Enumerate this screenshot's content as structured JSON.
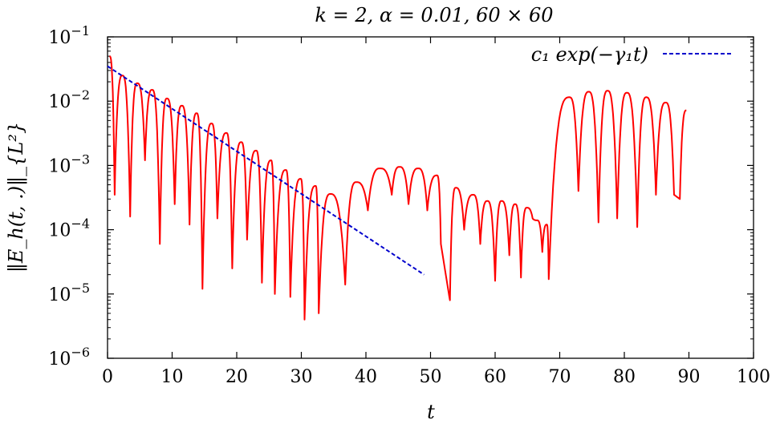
{
  "chart_data": {
    "type": "line",
    "title": "k = 2, α = 0.01, 60 × 60",
    "xlabel": "t",
    "ylabel": "‖E_h(t, .)‖_{L²}",
    "xlim": [
      0,
      100
    ],
    "ylim": [
      1e-06,
      0.1
    ],
    "yscale": "log",
    "x_ticks": [
      0,
      10,
      20,
      30,
      40,
      50,
      60,
      70,
      80,
      90,
      100
    ],
    "y_ticks": [
      {
        "value": 1e-06,
        "exp": "−6"
      },
      {
        "value": 1e-05,
        "exp": "−5"
      },
      {
        "value": 0.0001,
        "exp": "−4"
      },
      {
        "value": 0.001,
        "exp": "−3"
      },
      {
        "value": 0.01,
        "exp": "−2"
      },
      {
        "value": 0.1,
        "exp": "−1"
      }
    ],
    "tick_base": "10",
    "grid": false,
    "legend_position": "top-right",
    "series": [
      {
        "name": "",
        "color": "#ff0000",
        "style": "solid",
        "peaks": [
          [
            0.3,
            0.05
          ],
          [
            2.3,
            0.025
          ],
          [
            4.6,
            0.019
          ],
          [
            6.9,
            0.015
          ],
          [
            9.2,
            0.011
          ],
          [
            11.5,
            0.0085
          ],
          [
            13.8,
            0.0065
          ],
          [
            16.1,
            0.0045
          ],
          [
            18.4,
            0.0032
          ],
          [
            20.7,
            0.0023
          ],
          [
            23.0,
            0.0017
          ],
          [
            25.3,
            0.0012
          ],
          [
            27.6,
            0.00085
          ],
          [
            29.9,
            0.00062
          ],
          [
            32.2,
            0.00048
          ],
          [
            34.5,
            0.00036
          ],
          [
            38.5,
            0.00055
          ],
          [
            42.2,
            0.0009
          ],
          [
            45.2,
            0.00095
          ],
          [
            48.1,
            0.0009
          ],
          [
            51.0,
            0.0007
          ],
          [
            53.9,
            0.00045
          ],
          [
            56.6,
            0.00035
          ],
          [
            58.8,
            0.00028
          ],
          [
            61.0,
            0.00028
          ],
          [
            63.1,
            0.00025
          ],
          [
            64.9,
            0.00022
          ],
          [
            66.5,
            0.00014
          ],
          [
            68.0,
            0.00012
          ],
          [
            71.5,
            0.0115
          ],
          [
            74.5,
            0.014
          ],
          [
            77.4,
            0.0145
          ],
          [
            80.4,
            0.0135
          ],
          [
            83.4,
            0.0115
          ],
          [
            86.4,
            0.0095
          ],
          [
            89.6,
            0.0072
          ]
        ],
        "troughs": [
          [
            1.1,
            0.00035
          ],
          [
            3.5,
            0.00016
          ],
          [
            5.8,
            0.0012
          ],
          [
            8.1,
            6e-05
          ],
          [
            10.4,
            0.00025
          ],
          [
            12.7,
            0.00012
          ],
          [
            14.7,
            1.2e-05
          ],
          [
            17.0,
            0.00015
          ],
          [
            19.3,
            2.5e-05
          ],
          [
            21.6,
            7e-05
          ],
          [
            23.9,
            1.5e-05
          ],
          [
            25.9,
            1e-05
          ],
          [
            28.3,
            9e-06
          ],
          [
            30.5,
            4e-06
          ],
          [
            32.7,
            5e-06
          ],
          [
            36.8,
            1.4e-05
          ],
          [
            40.3,
            0.0002
          ],
          [
            44.0,
            0.00035
          ],
          [
            46.6,
            0.00025
          ],
          [
            49.5,
            0.0002
          ],
          [
            51.6,
            6e-05
          ],
          [
            53.0,
            8e-06
          ],
          [
            55.2,
            0.0001
          ],
          [
            57.7,
            6e-05
          ],
          [
            60.0,
            1.6e-05
          ],
          [
            62.2,
            4e-05
          ],
          [
            64.0,
            1.8e-05
          ],
          [
            65.8,
            0.00015
          ],
          [
            67.3,
            4.5e-05
          ],
          [
            68.3,
            1.7e-05
          ],
          [
            72.9,
            0.0004
          ],
          [
            76.0,
            0.00013
          ],
          [
            78.9,
            0.00015
          ],
          [
            82.0,
            0.00011
          ],
          [
            84.9,
            0.00035
          ],
          [
            87.7,
            0.00035
          ],
          [
            88.6,
            0.0003
          ]
        ]
      },
      {
        "name": "c₁ exp(−γ₁t)",
        "color": "#0000cc",
        "style": "dashed",
        "x": [
          0,
          49
        ],
        "y": [
          0.035,
          2e-05
        ]
      }
    ]
  }
}
